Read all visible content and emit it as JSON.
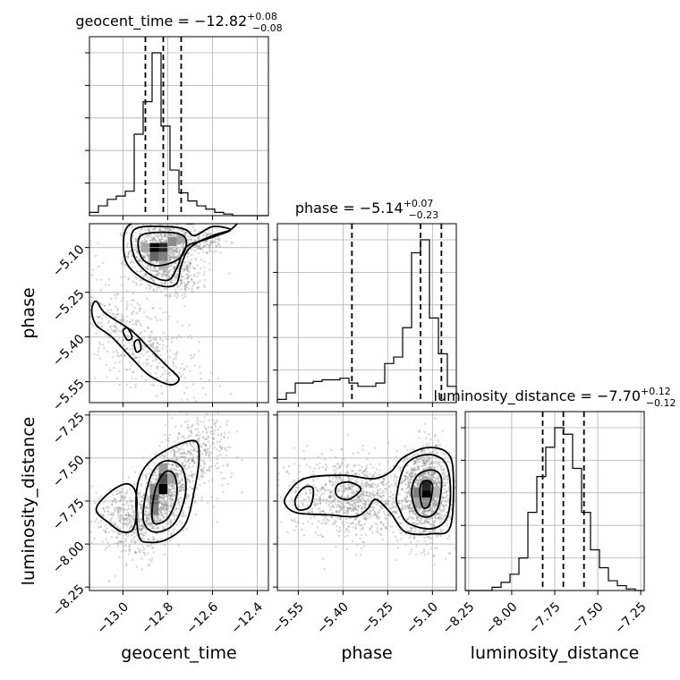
{
  "chart_data": {
    "type": "corner",
    "parameters": [
      "geocent_time",
      "phase",
      "luminosity_distance"
    ],
    "titles": [
      {
        "param": "geocent_time",
        "name": "geocent_time",
        "median": "−12.82",
        "plus": "+0.08",
        "minus": "−0.08"
      },
      {
        "param": "phase",
        "name": "phase",
        "median": "−5.14",
        "plus": "+0.07",
        "minus": "−0.23"
      },
      {
        "param": "luminosity_distance",
        "name": "luminosity_distance",
        "median": "−7.70",
        "plus": "+0.12",
        "minus": "−0.12"
      }
    ],
    "axes": {
      "geocent_time": {
        "range": [
          -13.15,
          -12.35
        ],
        "ticks": [
          -13.0,
          -12.8,
          -12.6,
          -12.4
        ],
        "tick_labels": [
          "−13.0",
          "−12.8",
          "−12.6",
          "−12.4"
        ]
      },
      "phase": {
        "range": [
          -5.62,
          -5.02
        ],
        "ticks": [
          -5.55,
          -5.4,
          -5.25,
          -5.1
        ],
        "tick_labels": [
          "−5.55",
          "−5.40",
          "−5.25",
          "−5.10"
        ]
      },
      "luminosity_distance": {
        "range": [
          -8.27,
          -7.23
        ],
        "ticks": [
          -8.25,
          -8.0,
          -7.75,
          -7.5,
          -7.25
        ],
        "tick_labels": [
          "−8.25",
          "−8.00",
          "−7.75",
          "−7.50",
          "−7.25"
        ]
      }
    },
    "histograms": {
      "geocent_time": {
        "edges": [
          -13.15,
          -13.11,
          -13.07,
          -13.03,
          -12.99,
          -12.95,
          -12.91,
          -12.87,
          -12.83,
          -12.79,
          -12.75,
          -12.71,
          -12.67,
          -12.63,
          -12.59,
          -12.55,
          -12.51,
          -12.47,
          -12.43,
          -12.39,
          -12.35
        ],
        "counts": [
          2,
          6,
          10,
          12,
          15,
          50,
          70,
          100,
          55,
          28,
          14,
          9,
          6,
          4,
          2,
          1,
          0,
          0,
          0,
          0
        ],
        "quantiles": [
          -12.9,
          -12.82,
          -12.74
        ]
      },
      "phase": {
        "edges": [
          -5.62,
          -5.59,
          -5.56,
          -5.53,
          -5.5,
          -5.47,
          -5.44,
          -5.41,
          -5.38,
          -5.35,
          -5.32,
          -5.29,
          -5.26,
          -5.23,
          -5.2,
          -5.17,
          -5.14,
          -5.11,
          -5.08,
          -5.05,
          -5.02
        ],
        "counts": [
          2,
          6,
          12,
          12,
          13,
          14,
          14,
          15,
          12,
          10,
          10,
          12,
          24,
          28,
          46,
          92,
          100,
          52,
          30,
          10
        ],
        "quantiles": [
          -5.37,
          -5.14,
          -5.07
        ]
      },
      "luminosity_distance": {
        "edges": [
          -8.27,
          -8.218,
          -8.166,
          -8.114,
          -8.062,
          -8.01,
          -7.958,
          -7.906,
          -7.854,
          -7.802,
          -7.75,
          -7.698,
          -7.646,
          -7.594,
          -7.542,
          -7.49,
          -7.438,
          -7.386,
          -7.334,
          -7.282,
          -7.23
        ],
        "counts": [
          0,
          0,
          0,
          2,
          5,
          10,
          20,
          48,
          70,
          88,
          100,
          96,
          75,
          48,
          25,
          14,
          6,
          3,
          1,
          0
        ],
        "quantiles": [
          -7.82,
          -7.7,
          -7.58
        ]
      }
    },
    "scatter_2d": [
      {
        "x": "geocent_time",
        "y": "phase",
        "clusters": [
          {
            "cx": -12.83,
            "cy": -5.11,
            "sx": 0.07,
            "sy": 0.05,
            "n": 900
          },
          {
            "cx": -12.65,
            "cy": -5.08,
            "sx": 0.06,
            "sy": 0.02,
            "n": 150
          },
          {
            "cx": -12.75,
            "cy": -5.2,
            "sx": 0.07,
            "sy": 0.03,
            "n": 200
          },
          {
            "cx": -12.95,
            "cy": -5.4,
            "sx": 0.15,
            "sy": 0.08,
            "n": 500,
            "slope": -1.0
          }
        ],
        "contours": [
          [
            [
              -12.92,
              -5.06
            ],
            [
              -12.78,
              -5.05
            ],
            [
              -12.72,
              -5.07
            ],
            [
              -12.73,
              -5.12
            ],
            [
              -12.78,
              -5.15
            ],
            [
              -12.86,
              -5.16
            ],
            [
              -12.92,
              -5.13
            ]
          ],
          [
            [
              -12.95,
              -5.04
            ],
            [
              -12.8,
              -5.03
            ],
            [
              -12.72,
              -5.04
            ],
            [
              -12.68,
              -5.06
            ],
            [
              -12.6,
              -5.03
            ],
            [
              -12.52,
              -5.04
            ],
            [
              -12.58,
              -5.06
            ],
            [
              -12.66,
              -5.08
            ],
            [
              -12.72,
              -5.1
            ],
            [
              -12.76,
              -5.17
            ],
            [
              -12.8,
              -5.21
            ],
            [
              -12.88,
              -5.19
            ],
            [
              -12.95,
              -5.13
            ]
          ],
          [
            [
              -12.98,
              -5.03
            ],
            [
              -12.84,
              -5.01
            ],
            [
              -12.7,
              -5.02
            ],
            [
              -12.6,
              -5.01
            ],
            [
              -12.48,
              -5.0
            ],
            [
              -12.52,
              -5.04
            ],
            [
              -12.6,
              -5.06
            ],
            [
              -12.7,
              -5.1
            ],
            [
              -12.74,
              -5.16
            ],
            [
              -12.76,
              -5.22
            ],
            [
              -12.82,
              -5.23
            ],
            [
              -12.92,
              -5.2
            ],
            [
              -12.99,
              -5.14
            ]
          ],
          [
            [
              -13.12,
              -5.28
            ],
            [
              -13.08,
              -5.32
            ],
            [
              -12.96,
              -5.38
            ],
            [
              -12.88,
              -5.44
            ],
            [
              -12.8,
              -5.5
            ],
            [
              -12.75,
              -5.54
            ],
            [
              -12.79,
              -5.56
            ],
            [
              -12.88,
              -5.53
            ],
            [
              -12.95,
              -5.48
            ],
            [
              -13.05,
              -5.4
            ],
            [
              -13.12,
              -5.36
            ],
            [
              -13.14,
              -5.31
            ]
          ],
          [
            [
              -13.0,
              -5.38
            ],
            [
              -12.98,
              -5.37
            ],
            [
              -12.96,
              -5.4
            ],
            [
              -12.98,
              -5.41
            ]
          ],
          [
            [
              -12.95,
              -5.42
            ],
            [
              -12.93,
              -5.41
            ],
            [
              -12.92,
              -5.44
            ],
            [
              -12.94,
              -5.45
            ]
          ]
        ],
        "density_cells": [
          {
            "x": -12.86,
            "y": -5.1,
            "level": 1.0
          },
          {
            "x": -12.82,
            "y": -5.1,
            "level": 0.85
          },
          {
            "x": -12.86,
            "y": -5.13,
            "level": 0.6
          },
          {
            "x": -12.82,
            "y": -5.13,
            "level": 0.5
          },
          {
            "x": -12.78,
            "y": -5.08,
            "level": 0.45
          },
          {
            "x": -12.74,
            "y": -5.07,
            "level": 0.35
          },
          {
            "x": -12.9,
            "y": -5.1,
            "level": 0.35
          },
          {
            "x": -12.82,
            "y": -5.16,
            "level": 0.3
          }
        ]
      },
      {
        "x": "geocent_time",
        "y": "luminosity_distance",
        "clusters": [
          {
            "cx": -12.82,
            "cy": -7.72,
            "sx": 0.08,
            "sy": 0.12,
            "n": 1100,
            "slope": 1.0
          },
          {
            "cx": -13.0,
            "cy": -7.85,
            "sx": 0.07,
            "sy": 0.08,
            "n": 300
          },
          {
            "cx": -12.65,
            "cy": -7.45,
            "sx": 0.07,
            "sy": 0.12,
            "n": 250
          }
        ],
        "contours": [
          [
            [
              -12.87,
              -7.8
            ],
            [
              -12.85,
              -7.66
            ],
            [
              -12.81,
              -7.58
            ],
            [
              -12.77,
              -7.6
            ],
            [
              -12.76,
              -7.72
            ],
            [
              -12.8,
              -7.85
            ],
            [
              -12.86,
              -7.88
            ]
          ],
          [
            [
              -12.91,
              -7.85
            ],
            [
              -12.88,
              -7.62
            ],
            [
              -12.82,
              -7.52
            ],
            [
              -12.74,
              -7.55
            ],
            [
              -12.72,
              -7.7
            ],
            [
              -12.77,
              -7.88
            ],
            [
              -12.86,
              -7.93
            ]
          ],
          [
            [
              -12.93,
              -7.95
            ],
            [
              -12.94,
              -7.7
            ],
            [
              -12.9,
              -7.55
            ],
            [
              -12.8,
              -7.45
            ],
            [
              -12.68,
              -7.4
            ],
            [
              -12.66,
              -7.5
            ],
            [
              -12.68,
              -7.68
            ],
            [
              -12.72,
              -7.88
            ],
            [
              -12.8,
              -7.97
            ],
            [
              -12.88,
              -7.99
            ]
          ],
          [
            [
              -13.12,
              -7.8
            ],
            [
              -13.06,
              -7.7
            ],
            [
              -12.98,
              -7.65
            ],
            [
              -12.94,
              -7.72
            ],
            [
              -12.95,
              -7.9
            ],
            [
              -13.0,
              -7.93
            ],
            [
              -13.06,
              -7.88
            ]
          ]
        ],
        "density_cells": [
          {
            "x": -12.82,
            "y": -7.68,
            "level": 1.0
          },
          {
            "x": -12.82,
            "y": -7.62,
            "level": 0.7
          },
          {
            "x": -12.86,
            "y": -7.74,
            "level": 0.6
          },
          {
            "x": -12.86,
            "y": -7.8,
            "level": 0.5
          },
          {
            "x": -12.82,
            "y": -7.56,
            "level": 0.4
          },
          {
            "x": -12.78,
            "y": -7.62,
            "level": 0.35
          },
          {
            "x": -12.86,
            "y": -7.68,
            "level": 0.45
          }
        ]
      },
      {
        "x": "phase",
        "y": "luminosity_distance",
        "clusters": [
          {
            "cx": -5.12,
            "cy": -7.7,
            "sx": 0.04,
            "sy": 0.13,
            "n": 1300
          },
          {
            "cx": -5.4,
            "cy": -7.72,
            "sx": 0.09,
            "sy": 0.12,
            "n": 700
          },
          {
            "cx": -5.3,
            "cy": -7.75,
            "sx": 0.08,
            "sy": 0.1,
            "n": 300
          }
        ],
        "contours": [
          [
            [
              -5.14,
              -7.66
            ],
            [
              -5.12,
              -7.63
            ],
            [
              -5.1,
              -7.66
            ],
            [
              -5.11,
              -7.77
            ],
            [
              -5.13,
              -7.79
            ],
            [
              -5.14,
              -7.74
            ]
          ],
          [
            [
              -5.17,
              -7.7
            ],
            [
              -5.15,
              -7.6
            ],
            [
              -5.1,
              -7.57
            ],
            [
              -5.07,
              -7.62
            ],
            [
              -5.08,
              -7.78
            ],
            [
              -5.11,
              -7.84
            ],
            [
              -5.15,
              -7.82
            ]
          ],
          [
            [
              -5.22,
              -7.72
            ],
            [
              -5.19,
              -7.54
            ],
            [
              -5.12,
              -7.48
            ],
            [
              -5.06,
              -7.52
            ],
            [
              -5.04,
              -7.66
            ],
            [
              -5.05,
              -7.84
            ],
            [
              -5.1,
              -7.91
            ],
            [
              -5.18,
              -7.88
            ],
            [
              -5.21,
              -7.8
            ]
          ],
          [
            [
              -5.59,
              -7.72
            ],
            [
              -5.53,
              -7.62
            ],
            [
              -5.4,
              -7.6
            ],
            [
              -5.3,
              -7.62
            ],
            [
              -5.24,
              -7.58
            ],
            [
              -5.2,
              -7.5
            ],
            [
              -5.12,
              -7.44
            ],
            [
              -5.05,
              -7.47
            ],
            [
              -5.03,
              -7.6
            ],
            [
              -5.04,
              -7.9
            ],
            [
              -5.1,
              -7.94
            ],
            [
              -5.19,
              -7.93
            ],
            [
              -5.24,
              -7.82
            ],
            [
              -5.29,
              -7.74
            ],
            [
              -5.32,
              -7.8
            ],
            [
              -5.36,
              -7.84
            ],
            [
              -5.45,
              -7.83
            ],
            [
              -5.55,
              -7.82
            ],
            [
              -5.59,
              -7.78
            ]
          ],
          [
            [
              -5.56,
              -7.74
            ],
            [
              -5.53,
              -7.67
            ],
            [
              -5.5,
              -7.68
            ],
            [
              -5.51,
              -7.78
            ],
            [
              -5.55,
              -7.8
            ]
          ],
          [
            [
              -5.42,
              -7.66
            ],
            [
              -5.38,
              -7.64
            ],
            [
              -5.34,
              -7.68
            ],
            [
              -5.38,
              -7.74
            ],
            [
              -5.42,
              -7.72
            ]
          ]
        ],
        "density_cells": [
          {
            "x": -5.12,
            "y": -7.7,
            "level": 1.0
          },
          {
            "x": -5.12,
            "y": -7.66,
            "level": 0.85
          },
          {
            "x": -5.15,
            "y": -7.7,
            "level": 0.5
          },
          {
            "x": -5.12,
            "y": -7.76,
            "level": 0.45
          },
          {
            "x": -5.15,
            "y": -7.76,
            "level": 0.35
          },
          {
            "x": -5.09,
            "y": -7.7,
            "level": 0.3
          }
        ]
      }
    ]
  }
}
